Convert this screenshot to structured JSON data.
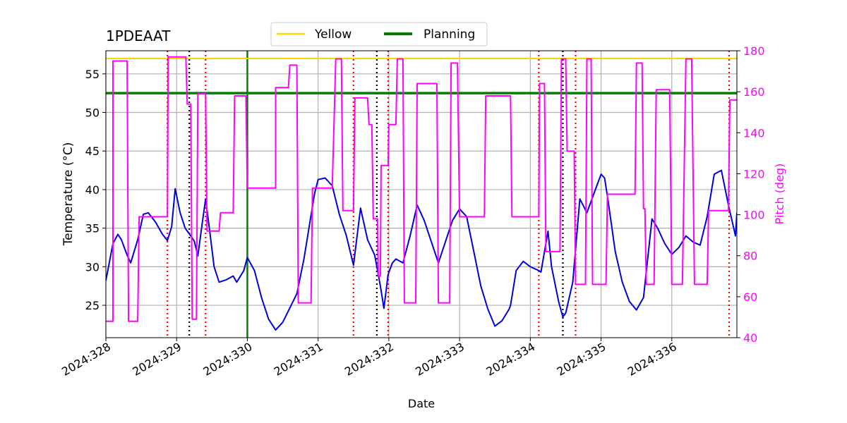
{
  "chart_data": {
    "type": "line",
    "title": "1PDEAAT",
    "xlabel": "Date",
    "ylabel": "Temperature ($^\\circ$C)",
    "ylabel_display": "Temperature (°C)",
    "y2label": "Pitch (deg)",
    "xlim": [
      328.0,
      336.92
    ],
    "ylim": [
      20.8,
      58.0
    ],
    "y2lim": [
      40,
      180
    ],
    "xticks": [
      328,
      329,
      330,
      331,
      332,
      333,
      334,
      335,
      336
    ],
    "xtick_labels": [
      "2024:328",
      "2024:329",
      "2024:330",
      "2024:331",
      "2024:332",
      "2024:333",
      "2024:334",
      "2024:335",
      "2024:336"
    ],
    "yticks": [
      25,
      30,
      35,
      40,
      45,
      50,
      55
    ],
    "y2ticks": [
      40,
      60,
      80,
      100,
      120,
      140,
      160,
      180
    ],
    "grid": true,
    "legend": {
      "placement": "top-center",
      "entries": [
        {
          "name": "Yellow",
          "color": "#FFD700"
        },
        {
          "name": "Planning",
          "color": "#008000"
        }
      ]
    },
    "hlines": [
      {
        "name": "Yellow",
        "y": 57.0,
        "color": "#FFD700"
      },
      {
        "name": "Planning",
        "y": 52.5,
        "color": "#008000"
      }
    ],
    "vlines_green": [
      330.0
    ],
    "vlines_red_dotted": [
      328.87,
      329.41,
      331.5,
      331.99,
      334.12,
      334.64,
      336.81
    ],
    "vlines_black_dotted": [
      329.18,
      331.83,
      334.46
    ],
    "series": [
      {
        "name": "Temperature",
        "axis": "left",
        "color": "#0000DD",
        "x": [
          328.0,
          328.1,
          328.17,
          328.22,
          328.3,
          328.35,
          328.45,
          328.53,
          328.6,
          328.7,
          328.8,
          328.87,
          328.93,
          328.98,
          329.05,
          329.12,
          329.2,
          329.25,
          329.3,
          329.36,
          329.41,
          329.47,
          329.53,
          329.6,
          329.7,
          329.8,
          329.85,
          329.95,
          330.0,
          330.1,
          330.2,
          330.3,
          330.4,
          330.5,
          330.7,
          330.8,
          330.95,
          331.0,
          331.1,
          331.2,
          331.3,
          331.4,
          331.5,
          331.6,
          331.7,
          331.8,
          331.88,
          331.93,
          331.99,
          332.05,
          332.1,
          332.2,
          332.3,
          332.4,
          332.5,
          332.7,
          332.9,
          333.0,
          333.1,
          333.2,
          333.3,
          333.4,
          333.5,
          333.6,
          333.7,
          333.72,
          333.8,
          333.9,
          334.0,
          334.12,
          334.15,
          334.25,
          334.3,
          334.4,
          334.46,
          334.5,
          334.6,
          334.7,
          334.8,
          334.9,
          335.0,
          335.05,
          335.1,
          335.2,
          335.3,
          335.4,
          335.5,
          335.6,
          335.72,
          335.8,
          335.9,
          336.0,
          336.1,
          336.2,
          336.3,
          336.4,
          336.5,
          336.6,
          336.7,
          336.8,
          336.9,
          336.92
        ],
        "values": [
          28.2,
          33.0,
          34.2,
          33.5,
          31.5,
          30.5,
          33.5,
          36.8,
          37.0,
          35.8,
          34.2,
          33.4,
          35.2,
          40.1,
          37.0,
          35.0,
          34.0,
          33.3,
          31.4,
          35.5,
          38.8,
          34.5,
          30.0,
          28.0,
          28.3,
          28.8,
          28.0,
          29.5,
          31.2,
          29.5,
          26.0,
          23.2,
          21.8,
          22.8,
          26.5,
          31.0,
          39.5,
          41.3,
          41.5,
          40.5,
          36.8,
          34.0,
          30.2,
          37.6,
          33.5,
          31.5,
          27.5,
          24.6,
          29.0,
          30.5,
          31.0,
          30.5,
          34.0,
          38.0,
          36.0,
          30.5,
          36.0,
          37.5,
          36.5,
          32.0,
          27.5,
          24.5,
          22.3,
          23.0,
          24.5,
          25.0,
          29.5,
          30.7,
          30.0,
          29.5,
          29.3,
          34.6,
          30.0,
          25.5,
          23.5,
          24.0,
          28.0,
          38.8,
          37.0,
          39.5,
          42.0,
          41.5,
          38.5,
          32.0,
          28.0,
          25.5,
          24.4,
          26.0,
          36.2,
          35.0,
          33.0,
          31.6,
          32.5,
          34.0,
          33.2,
          32.8,
          36.5,
          42.0,
          42.5,
          38.0,
          34.0,
          37.0
        ]
      },
      {
        "name": "Pitch",
        "axis": "right",
        "color": "#FF00FF",
        "x": [
          328.0,
          328.1,
          328.1,
          328.3,
          328.32,
          328.45,
          328.47,
          328.87,
          328.88,
          329.13,
          329.15,
          329.2,
          329.22,
          329.28,
          329.3,
          329.41,
          329.43,
          329.6,
          329.62,
          329.8,
          329.82,
          329.98,
          330.0,
          330.4,
          330.4,
          330.58,
          330.6,
          330.7,
          330.72,
          330.9,
          330.92,
          331.2,
          331.25,
          331.33,
          331.35,
          331.5,
          331.52,
          331.7,
          331.72,
          331.76,
          331.78,
          331.84,
          331.85,
          331.88,
          331.89,
          331.99,
          332.0,
          332.1,
          332.12,
          332.2,
          332.22,
          332.38,
          332.4,
          332.68,
          332.7,
          332.86,
          332.88,
          332.97,
          333.0,
          333.35,
          333.37,
          333.72,
          333.74,
          334.12,
          334.13,
          334.2,
          334.22,
          334.42,
          334.44,
          334.5,
          334.52,
          334.62,
          334.64,
          334.78,
          334.8,
          334.86,
          334.88,
          335.07,
          335.09,
          335.48,
          335.5,
          335.58,
          335.6,
          335.62,
          335.64,
          335.75,
          335.78,
          335.97,
          336.0,
          336.15,
          336.2,
          336.28,
          336.32,
          336.5,
          336.52,
          336.8,
          336.82,
          336.92
        ],
        "values": [
          48,
          48,
          175,
          175,
          48,
          48,
          99,
          99,
          177,
          177,
          154,
          154,
          49,
          49,
          159,
          159,
          92,
          92,
          101,
          101,
          158,
          158,
          113,
          113,
          162,
          162,
          173,
          173,
          57,
          57,
          113,
          113,
          176,
          176,
          102,
          102,
          157,
          157,
          144,
          144,
          98,
          98,
          70,
          70,
          124,
          124,
          144,
          144,
          176,
          176,
          57,
          57,
          164,
          164,
          57,
          57,
          174,
          174,
          99,
          99,
          158,
          158,
          99,
          99,
          164,
          164,
          82,
          82,
          176,
          176,
          131,
          131,
          66,
          66,
          176,
          176,
          66,
          66,
          110,
          110,
          174,
          174,
          103,
          103,
          66,
          66,
          161,
          161,
          66,
          66,
          176,
          176,
          66,
          66,
          102,
          102,
          156,
          156
        ]
      }
    ]
  }
}
